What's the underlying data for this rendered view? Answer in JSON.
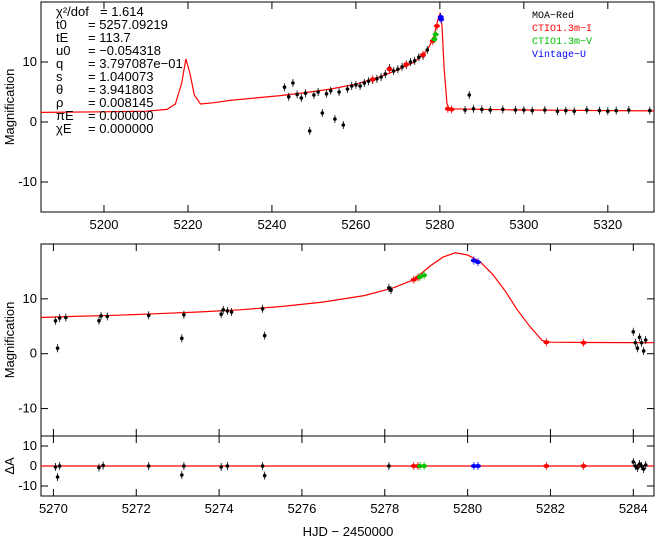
{
  "chart_data": {
    "type": "scatter",
    "xlabel": "HJD − 2450000",
    "colors": {
      "model": "#ff0000",
      "MOA-Red": "#000000",
      "CTIO1.3m-I": "#ff0000",
      "CTIO1.3m-V": "#00c000",
      "Vintage-U": "#0000ff"
    },
    "legend": {
      "placement": "top-right",
      "entries": [
        "MOA−Red",
        "CTIO1.3m−I",
        "CTIO1.3m−V",
        "Vintage−U"
      ]
    },
    "parameters": {
      "chi2_label": "χ²/dof",
      "chi2_value": "= 1.614",
      "t0_label": "t0",
      "t0_value": "= 5257.09219",
      "tE_label": "tE",
      "tE_value": "= 113.7",
      "u0_label": "u0",
      "u0_value": "= −0.054318",
      "q_label": "q",
      "q_value": "= 3.797087e−01",
      "s_label": "s",
      "s_value": "= 1.040073",
      "theta_label": "θ",
      "theta_value": "= 3.941803",
      "rho_label": "ρ",
      "rho_value": "= 0.008145",
      "piE_label": "πE",
      "piE_value": "= 0.000000",
      "chiE_label": "χE",
      "chiE_value": "= 0.000000"
    },
    "panels": [
      {
        "name": "overview",
        "ylabel": "Magnification",
        "xlim": [
          5185,
          5331
        ],
        "ylim": [
          -15,
          20
        ],
        "xticks": [
          5200,
          5220,
          5240,
          5260,
          5280,
          5300,
          5320
        ],
        "yticks": [
          -10,
          0,
          10
        ],
        "model_points": [
          [
            5185,
            1.6
          ],
          [
            5200,
            1.7
          ],
          [
            5210,
            1.8
          ],
          [
            5215,
            2.1
          ],
          [
            5217,
            3.0
          ],
          [
            5218.5,
            6.5
          ],
          [
            5219.5,
            10.5
          ],
          [
            5220.5,
            8.0
          ],
          [
            5221.5,
            4.5
          ],
          [
            5223,
            3.0
          ],
          [
            5226,
            3.2
          ],
          [
            5230,
            3.6
          ],
          [
            5236,
            4.0
          ],
          [
            5242,
            4.4
          ],
          [
            5248,
            4.9
          ],
          [
            5254,
            5.5
          ],
          [
            5260,
            6.3
          ],
          [
            5266,
            7.6
          ],
          [
            5270,
            8.7
          ],
          [
            5274,
            10.0
          ],
          [
            5277,
            12.0
          ],
          [
            5278.5,
            14.0
          ],
          [
            5279.5,
            17.0
          ],
          [
            5280,
            18.0
          ],
          [
            5280.5,
            16.0
          ],
          [
            5281,
            9.0
          ],
          [
            5281.7,
            3.0
          ],
          [
            5282.2,
            2.2
          ],
          [
            5290,
            2.1
          ],
          [
            5300,
            2.0
          ],
          [
            5310,
            1.95
          ],
          [
            5320,
            1.9
          ],
          [
            5331,
            1.85
          ]
        ],
        "data": [
          {
            "series": "MOA-Red",
            "points": [
              [
                5243,
                5.8
              ],
              [
                5244,
                4.2
              ],
              [
                5245,
                6.5
              ],
              [
                5246,
                4.6
              ],
              [
                5247,
                4.0
              ],
              [
                5248,
                4.8
              ],
              [
                5249,
                -1.5
              ],
              [
                5250,
                4.5
              ],
              [
                5251,
                5.0
              ],
              [
                5252,
                1.5
              ],
              [
                5253,
                4.7
              ],
              [
                5254,
                5.2
              ],
              [
                5255,
                0.5
              ],
              [
                5256,
                5.0
              ],
              [
                5257,
                -0.5
              ],
              [
                5258,
                5.5
              ],
              [
                5259,
                6.0
              ],
              [
                5260,
                6.2
              ],
              [
                5261,
                6.0
              ],
              [
                5262,
                6.5
              ],
              [
                5263,
                6.8
              ],
              [
                5264,
                7.0
              ],
              [
                5265,
                7.2
              ],
              [
                5266,
                7.5
              ],
              [
                5267,
                8.0
              ],
              [
                5268,
                9.0
              ],
              [
                5269,
                8.5
              ],
              [
                5270,
                8.8
              ],
              [
                5271,
                9.2
              ],
              [
                5272,
                9.5
              ],
              [
                5273,
                10.0
              ],
              [
                5274,
                10.2
              ],
              [
                5275,
                10.8
              ],
              [
                5276,
                11.0
              ],
              [
                5277,
                12.0
              ],
              [
                5286,
                2.0
              ],
              [
                5287,
                4.5
              ],
              [
                5288,
                2.2
              ],
              [
                5290,
                2.1
              ],
              [
                5292,
                2.0
              ],
              [
                5295,
                2.1
              ],
              [
                5298,
                2.0
              ],
              [
                5300,
                2.0
              ],
              [
                5302,
                1.9
              ],
              [
                5305,
                2.0
              ],
              [
                5308,
                1.8
              ],
              [
                5310,
                1.9
              ],
              [
                5312,
                1.8
              ],
              [
                5315,
                2.0
              ],
              [
                5318,
                1.9
              ],
              [
                5320,
                1.8
              ],
              [
                5322,
                1.9
              ],
              [
                5325,
                2.0
              ],
              [
                5330,
                1.9
              ]
            ]
          },
          {
            "series": "CTIO1.3m-I",
            "points": [
              [
                5264,
                7.1
              ],
              [
                5268,
                8.8
              ],
              [
                5272,
                9.6
              ],
              [
                5276,
                11.2
              ],
              [
                5278.3,
                13.5
              ],
              [
                5279.3,
                16.0
              ],
              [
                5281.9,
                2.2
              ],
              [
                5282.8,
                2.1
              ]
            ]
          },
          {
            "series": "CTIO1.3m-V",
            "points": [
              [
                5278.7,
                13.8
              ],
              [
                5279.0,
                14.6
              ]
            ]
          },
          {
            "series": "Vintage-U",
            "points": [
              [
                5280.2,
                17.5
              ],
              [
                5280.3,
                17.1
              ]
            ]
          }
        ]
      },
      {
        "name": "zoom",
        "ylabel": "Magnification",
        "xlim": [
          5269.7,
          5284.5
        ],
        "ylim": [
          -15,
          20
        ],
        "xticks": [
          5270,
          5272,
          5274,
          5276,
          5278,
          5280,
          5282,
          5284
        ],
        "yticks": [
          -10,
          0,
          10
        ],
        "model_points": [
          [
            5269.7,
            6.6
          ],
          [
            5270.5,
            6.8
          ],
          [
            5271.5,
            7.0
          ],
          [
            5272.5,
            7.3
          ],
          [
            5273.5,
            7.6
          ],
          [
            5274.5,
            8.0
          ],
          [
            5275.5,
            8.6
          ],
          [
            5276.5,
            9.4
          ],
          [
            5277.5,
            10.6
          ],
          [
            5278.2,
            12.0
          ],
          [
            5278.7,
            13.5
          ],
          [
            5279.1,
            16.0
          ],
          [
            5279.4,
            17.6
          ],
          [
            5279.7,
            18.4
          ],
          [
            5280.0,
            18.0
          ],
          [
            5280.3,
            16.8
          ],
          [
            5280.6,
            14.5
          ],
          [
            5280.9,
            11.5
          ],
          [
            5281.2,
            8.0
          ],
          [
            5281.5,
            5.0
          ],
          [
            5281.8,
            2.4
          ],
          [
            5282.0,
            2.1
          ],
          [
            5283,
            2.05
          ],
          [
            5284.5,
            2.0
          ]
        ],
        "data": [
          {
            "series": "MOA-Red",
            "points": [
              [
                5270.05,
                6.0
              ],
              [
                5270.1,
                1.0
              ],
              [
                5270.15,
                6.5
              ],
              [
                5270.3,
                6.6
              ],
              [
                5271.1,
                6.0
              ],
              [
                5271.15,
                6.9
              ],
              [
                5271.3,
                6.8
              ],
              [
                5272.3,
                7.0
              ],
              [
                5273.1,
                2.8
              ],
              [
                5273.15,
                7.1
              ],
              [
                5274.05,
                7.2
              ],
              [
                5274.1,
                8.0
              ],
              [
                5274.2,
                7.8
              ],
              [
                5274.3,
                7.6
              ],
              [
                5275.05,
                8.2
              ],
              [
                5275.1,
                3.3
              ],
              [
                5278.1,
                12.0
              ],
              [
                5278.15,
                11.6
              ],
              [
                5284.0,
                4.0
              ],
              [
                5284.05,
                2.0
              ],
              [
                5284.1,
                1.0
              ],
              [
                5284.15,
                3.0
              ],
              [
                5284.2,
                2.0
              ],
              [
                5284.25,
                0.5
              ],
              [
                5284.3,
                2.5
              ]
            ]
          },
          {
            "series": "CTIO1.3m-I",
            "points": [
              [
                5278.7,
                13.5
              ],
              [
                5278.8,
                13.9
              ],
              [
                5281.9,
                2.1
              ],
              [
                5282.8,
                2.0
              ]
            ]
          },
          {
            "series": "CTIO1.3m-V",
            "points": [
              [
                5278.85,
                14.0
              ],
              [
                5278.95,
                14.3
              ]
            ]
          },
          {
            "series": "Vintage-U",
            "points": [
              [
                5280.15,
                17.0
              ],
              [
                5280.25,
                16.7
              ]
            ]
          }
        ]
      },
      {
        "name": "residuals",
        "ylabel": "ΔA",
        "xlim": [
          5269.7,
          5284.5
        ],
        "ylim": [
          -15,
          15
        ],
        "xticks": [
          5270,
          5272,
          5274,
          5276,
          5278,
          5280,
          5282,
          5284
        ],
        "yticks": [
          -10,
          0,
          10
        ],
        "data": [
          {
            "series": "MOA-Red",
            "points": [
              [
                5270.05,
                -0.5
              ],
              [
                5270.1,
                -5.5
              ],
              [
                5270.15,
                0.0
              ],
              [
                5271.1,
                -0.8
              ],
              [
                5271.2,
                0.2
              ],
              [
                5272.3,
                0.0
              ],
              [
                5273.1,
                -4.5
              ],
              [
                5273.15,
                0.0
              ],
              [
                5274.05,
                -0.5
              ],
              [
                5274.2,
                0.0
              ],
              [
                5275.05,
                0.0
              ],
              [
                5275.1,
                -4.8
              ],
              [
                5278.1,
                0.0
              ],
              [
                5284.0,
                2.0
              ],
              [
                5284.05,
                0.0
              ],
              [
                5284.1,
                -1.0
              ],
              [
                5284.15,
                1.0
              ],
              [
                5284.2,
                0.0
              ],
              [
                5284.25,
                -1.5
              ],
              [
                5284.3,
                0.5
              ]
            ]
          },
          {
            "series": "CTIO1.3m-I",
            "points": [
              [
                5278.7,
                0.0
              ],
              [
                5278.8,
                0.0
              ],
              [
                5281.9,
                0.0
              ],
              [
                5282.8,
                0.0
              ]
            ]
          },
          {
            "series": "CTIO1.3m-V",
            "points": [
              [
                5278.85,
                0.0
              ],
              [
                5278.95,
                0.0
              ]
            ]
          },
          {
            "series": "Vintage-U",
            "points": [
              [
                5280.15,
                0.0
              ],
              [
                5280.25,
                0.0
              ]
            ]
          }
        ]
      }
    ]
  }
}
